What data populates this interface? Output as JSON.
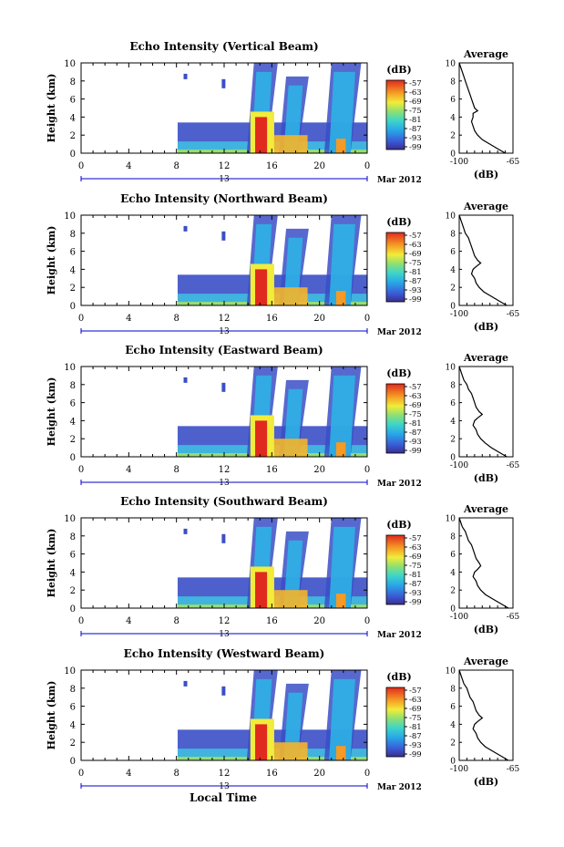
{
  "figure": {
    "xaxis_label": "Local Time",
    "colors": {
      "axis": "#000000",
      "dateMarker": "#0000cc"
    }
  },
  "chart_data": [
    {
      "type": "heatmap",
      "title": "Echo Intensity (Vertical Beam)",
      "ylabel": "Height (km)",
      "xticks": [
        "0",
        "4",
        "8",
        "12",
        "16",
        "20",
        "0"
      ],
      "xlim": [
        0,
        24
      ],
      "yticks": [
        "0",
        "2",
        "4",
        "6",
        "8",
        "10"
      ],
      "ylim": [
        0,
        10
      ],
      "date_day": "13",
      "date_month": "Mar 2012",
      "colorbar": {
        "unit": "(dB)",
        "ticks": [
          "-57",
          "-63",
          "-69",
          "-75",
          "-81",
          "-87",
          "-93",
          "-99"
        ]
      },
      "profile": {
        "title": "Average",
        "xlabel": "(dB)",
        "xticks": [
          "-100",
          "-65"
        ],
        "xlim": [
          -100,
          -65
        ],
        "yticks": [
          "0",
          "2",
          "4",
          "6",
          "8",
          "10"
        ],
        "ylim": [
          0,
          10
        ],
        "points": [
          [
            -100,
            10
          ],
          [
            -99,
            9.5
          ],
          [
            -98,
            9
          ],
          [
            -97,
            8.5
          ],
          [
            -96,
            8
          ],
          [
            -95,
            7.5
          ],
          [
            -94,
            7
          ],
          [
            -93,
            6.5
          ],
          [
            -92,
            6
          ],
          [
            -91,
            5.5
          ],
          [
            -90,
            5
          ],
          [
            -88,
            4.7
          ],
          [
            -91,
            4.4
          ],
          [
            -91,
            4
          ],
          [
            -92,
            3.5
          ],
          [
            -91,
            3
          ],
          [
            -90,
            2.5
          ],
          [
            -88,
            2
          ],
          [
            -85,
            1.5
          ],
          [
            -80,
            1
          ],
          [
            -75,
            0.5
          ],
          [
            -70,
            0
          ]
        ]
      }
    },
    {
      "type": "heatmap",
      "title": "Echo Intensity (Northward Beam)",
      "ylabel": "Height (km)",
      "xticks": [
        "0",
        "4",
        "8",
        "12",
        "16",
        "20",
        "0"
      ],
      "xlim": [
        0,
        24
      ],
      "yticks": [
        "0",
        "2",
        "4",
        "6",
        "8",
        "10"
      ],
      "ylim": [
        0,
        10
      ],
      "date_day": "13",
      "date_month": "Mar 2012",
      "colorbar": {
        "unit": "(dB)",
        "ticks": [
          "-57",
          "-63",
          "-69",
          "-75",
          "-81",
          "-87",
          "-93",
          "-99"
        ]
      },
      "profile": {
        "title": "Average",
        "xlabel": "(dB)",
        "xticks": [
          "-100",
          "-65"
        ],
        "xlim": [
          -100,
          -65
        ],
        "yticks": [
          "0",
          "2",
          "4",
          "6",
          "8",
          "10"
        ],
        "ylim": [
          0,
          10
        ],
        "points": [
          [
            -100,
            10
          ],
          [
            -99,
            9.5
          ],
          [
            -98,
            9
          ],
          [
            -97,
            8.5
          ],
          [
            -96,
            8
          ],
          [
            -94,
            7.5
          ],
          [
            -93,
            7
          ],
          [
            -92,
            6.5
          ],
          [
            -91,
            6
          ],
          [
            -90,
            5.5
          ],
          [
            -88,
            5
          ],
          [
            -86,
            4.7
          ],
          [
            -89,
            4.3
          ],
          [
            -91,
            4
          ],
          [
            -92,
            3.5
          ],
          [
            -90,
            3
          ],
          [
            -89,
            2.5
          ],
          [
            -87,
            2
          ],
          [
            -84,
            1.5
          ],
          [
            -79,
            1
          ],
          [
            -74,
            0.5
          ],
          [
            -69,
            0
          ]
        ]
      }
    },
    {
      "type": "heatmap",
      "title": "Echo Intensity (Eastward Beam)",
      "ylabel": "Height (km)",
      "xticks": [
        "0",
        "4",
        "8",
        "12",
        "16",
        "20",
        "0"
      ],
      "xlim": [
        0,
        24
      ],
      "yticks": [
        "0",
        "2",
        "4",
        "6",
        "8",
        "10"
      ],
      "ylim": [
        0,
        10
      ],
      "date_day": "13",
      "date_month": "Mar 2012",
      "colorbar": {
        "unit": "(dB)",
        "ticks": [
          "-57",
          "-63",
          "-69",
          "-75",
          "-81",
          "-87",
          "-93",
          "-99"
        ]
      },
      "profile": {
        "title": "Average",
        "xlabel": "(dB)",
        "xticks": [
          "-100",
          "-65"
        ],
        "xlim": [
          -100,
          -65
        ],
        "yticks": [
          "0",
          "2",
          "4",
          "6",
          "8",
          "10"
        ],
        "ylim": [
          0,
          10
        ],
        "points": [
          [
            -100,
            10
          ],
          [
            -99,
            9.5
          ],
          [
            -98,
            9
          ],
          [
            -97,
            8.5
          ],
          [
            -95,
            8
          ],
          [
            -94,
            7.5
          ],
          [
            -92,
            7
          ],
          [
            -91,
            6.5
          ],
          [
            -90,
            6
          ],
          [
            -89,
            5.5
          ],
          [
            -87,
            5
          ],
          [
            -85,
            4.7
          ],
          [
            -88,
            4.3
          ],
          [
            -90,
            4
          ],
          [
            -91,
            3.5
          ],
          [
            -89,
            3
          ],
          [
            -88,
            2.5
          ],
          [
            -86,
            2
          ],
          [
            -83,
            1.5
          ],
          [
            -79,
            1
          ],
          [
            -74,
            0.5
          ],
          [
            -69,
            0
          ]
        ]
      }
    },
    {
      "type": "heatmap",
      "title": "Echo Intensity (Southward Beam)",
      "ylabel": "Height (km)",
      "xticks": [
        "0",
        "4",
        "8",
        "12",
        "16",
        "20",
        "0"
      ],
      "xlim": [
        0,
        24
      ],
      "yticks": [
        "0",
        "2",
        "4",
        "6",
        "8",
        "10"
      ],
      "ylim": [
        0,
        10
      ],
      "date_day": "13",
      "date_month": "Mar 2012",
      "colorbar": {
        "unit": "(dB)",
        "ticks": [
          "-57",
          "-63",
          "-69",
          "-75",
          "-81",
          "-87",
          "-93",
          "-99"
        ]
      },
      "profile": {
        "title": "Average",
        "xlabel": "(dB)",
        "xticks": [
          "-100",
          "-65"
        ],
        "xlim": [
          -100,
          -65
        ],
        "yticks": [
          "0",
          "2",
          "4",
          "6",
          "8",
          "10"
        ],
        "ylim": [
          0,
          10
        ],
        "points": [
          [
            -100,
            10
          ],
          [
            -99,
            9.5
          ],
          [
            -98,
            9
          ],
          [
            -96,
            8.5
          ],
          [
            -95,
            8
          ],
          [
            -94,
            7.5
          ],
          [
            -92,
            7
          ],
          [
            -91,
            6.5
          ],
          [
            -90,
            6
          ],
          [
            -89,
            5.5
          ],
          [
            -87,
            5
          ],
          [
            -86,
            4.7
          ],
          [
            -88,
            4.3
          ],
          [
            -90,
            4
          ],
          [
            -91,
            3.5
          ],
          [
            -89,
            3
          ],
          [
            -88,
            2.5
          ],
          [
            -86,
            2
          ],
          [
            -83,
            1.5
          ],
          [
            -78,
            1
          ],
          [
            -73,
            0.5
          ],
          [
            -68,
            0
          ]
        ]
      }
    },
    {
      "type": "heatmap",
      "title": "Echo Intensity (Westward Beam)",
      "ylabel": "Height (km)",
      "xticks": [
        "0",
        "4",
        "8",
        "12",
        "16",
        "20",
        "0"
      ],
      "xlim": [
        0,
        24
      ],
      "yticks": [
        "0",
        "2",
        "4",
        "6",
        "8",
        "10"
      ],
      "ylim": [
        0,
        10
      ],
      "date_day": "13",
      "date_month": "Mar 2012",
      "colorbar": {
        "unit": "(dB)",
        "ticks": [
          "-57",
          "-63",
          "-69",
          "-75",
          "-81",
          "-87",
          "-93",
          "-99"
        ]
      },
      "profile": {
        "title": "Average",
        "xlabel": "(dB)",
        "xticks": [
          "-100",
          "-65"
        ],
        "xlim": [
          -100,
          -65
        ],
        "yticks": [
          "0",
          "2",
          "4",
          "6",
          "8",
          "10"
        ],
        "ylim": [
          0,
          10
        ],
        "points": [
          [
            -100,
            10
          ],
          [
            -99,
            9.5
          ],
          [
            -98,
            9
          ],
          [
            -97,
            8.5
          ],
          [
            -95,
            8
          ],
          [
            -94,
            7.5
          ],
          [
            -93,
            7
          ],
          [
            -91,
            6.5
          ],
          [
            -90,
            6
          ],
          [
            -89,
            5.5
          ],
          [
            -87,
            5
          ],
          [
            -85,
            4.7
          ],
          [
            -88,
            4.3
          ],
          [
            -90,
            4
          ],
          [
            -91,
            3.5
          ],
          [
            -89,
            3
          ],
          [
            -88,
            2.5
          ],
          [
            -86,
            2
          ],
          [
            -83,
            1.5
          ],
          [
            -78,
            1
          ],
          [
            -73,
            0.5
          ],
          [
            -68,
            0
          ]
        ]
      }
    }
  ]
}
